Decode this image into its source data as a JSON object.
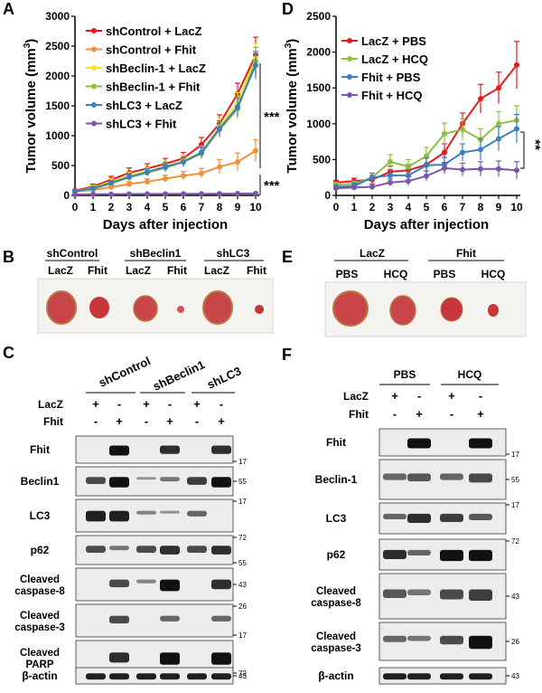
{
  "panels": {
    "A": "A",
    "B": "B",
    "C": "C",
    "D": "D",
    "E": "E",
    "F": "F"
  },
  "chart_data": [
    {
      "id": "A",
      "type": "line",
      "title": "",
      "xlabel": "Days after injection",
      "ylabel": "Tumor volume (mm3)",
      "ylabel_main": "Tumor volume (mm",
      "ylabel_sup": "3",
      "ylabel_close": ")",
      "xlim": [
        0,
        10
      ],
      "ylim": [
        0,
        3000
      ],
      "xticks": [
        0,
        1,
        2,
        3,
        4,
        5,
        6,
        7,
        8,
        9,
        10
      ],
      "yticks": [
        0,
        500,
        1000,
        1500,
        2000,
        2500,
        3000
      ],
      "legend_position": "top-left",
      "significance": [
        "***",
        "***"
      ],
      "series": [
        {
          "name": "shControl + LacZ",
          "color": "#e41a1c",
          "values": [
            80,
            150,
            260,
            380,
            450,
            530,
            620,
            850,
            1200,
            1700,
            2350
          ],
          "err": [
            20,
            40,
            60,
            80,
            80,
            90,
            100,
            120,
            150,
            180,
            300
          ]
        },
        {
          "name": "shControl + Fhit",
          "color": "#f28e3c",
          "values": [
            60,
            90,
            140,
            190,
            230,
            280,
            330,
            370,
            480,
            560,
            750
          ],
          "err": [
            15,
            20,
            30,
            40,
            50,
            60,
            70,
            80,
            120,
            150,
            180
          ]
        },
        {
          "name": "shBeclin-1 + LacZ",
          "color": "#f5e61e",
          "values": [
            70,
            130,
            230,
            330,
            400,
            480,
            580,
            720,
            1150,
            1550,
            2300
          ],
          "err": [
            20,
            40,
            50,
            60,
            70,
            80,
            90,
            100,
            140,
            170,
            250
          ]
        },
        {
          "name": "shBeclin-1 + Fhit",
          "color": "#8fbf40",
          "values": [
            60,
            110,
            200,
            300,
            380,
            460,
            560,
            700,
            1100,
            1450,
            2250
          ],
          "err": [
            15,
            30,
            40,
            50,
            60,
            70,
            80,
            90,
            130,
            160,
            230
          ]
        },
        {
          "name": "shLC3 + LacZ",
          "color": "#3a7fc2",
          "values": [
            70,
            120,
            210,
            310,
            390,
            480,
            560,
            720,
            1120,
            1480,
            2180
          ],
          "err": [
            15,
            30,
            40,
            50,
            60,
            70,
            80,
            90,
            130,
            160,
            230
          ]
        },
        {
          "name": "shLC3 + Fhit",
          "color": "#7b56a8",
          "values": [
            15,
            18,
            20,
            22,
            24,
            25,
            26,
            27,
            28,
            30,
            32
          ],
          "err": [
            3,
            3,
            3,
            3,
            3,
            3,
            3,
            3,
            4,
            4,
            5
          ]
        }
      ]
    },
    {
      "id": "D",
      "type": "line",
      "title": "",
      "xlabel": "Days after injection",
      "ylabel": "Tumor volume (mm3)",
      "ylabel_main": "Tumor volume (mm",
      "ylabel_sup": "3",
      "ylabel_close": ")",
      "xlim": [
        0,
        10
      ],
      "ylim": [
        0,
        2500
      ],
      "xticks": [
        0,
        1,
        2,
        3,
        4,
        5,
        6,
        7,
        8,
        9,
        10
      ],
      "yticks": [
        0,
        500,
        1000,
        1500,
        2000,
        2500
      ],
      "legend_position": "top-left",
      "significance": [
        "**"
      ],
      "series": [
        {
          "name": "LacZ + PBS",
          "color": "#e41a1c",
          "values": [
            180,
            200,
            220,
            330,
            350,
            430,
            600,
            1000,
            1350,
            1500,
            1820
          ],
          "err": [
            30,
            40,
            60,
            80,
            80,
            100,
            120,
            150,
            200,
            220,
            330
          ]
        },
        {
          "name": "LacZ + HCQ",
          "color": "#8fbf40",
          "values": [
            150,
            160,
            250,
            470,
            400,
            550,
            860,
            920,
            780,
            1000,
            1050
          ],
          "err": [
            30,
            40,
            60,
            100,
            100,
            120,
            150,
            150,
            150,
            170,
            200
          ]
        },
        {
          "name": "Fhit + PBS",
          "color": "#3a7fc2",
          "values": [
            120,
            130,
            250,
            280,
            280,
            420,
            430,
            600,
            640,
            790,
            930
          ],
          "err": [
            20,
            40,
            60,
            80,
            80,
            100,
            100,
            120,
            150,
            170,
            200
          ]
        },
        {
          "name": "Fhit + HCQ",
          "color": "#7b56a8",
          "values": [
            100,
            110,
            120,
            180,
            200,
            270,
            380,
            360,
            370,
            370,
            350
          ],
          "err": [
            20,
            30,
            40,
            50,
            60,
            70,
            80,
            90,
            100,
            110,
            120
          ]
        }
      ]
    }
  ],
  "panelB": {
    "groups": [
      "shControl",
      "shBeclin1",
      "shLC3"
    ],
    "lanes": [
      "LacZ",
      "Fhit",
      "LacZ",
      "Fhit",
      "LacZ",
      "Fhit"
    ]
  },
  "panelE": {
    "groups": [
      "LacZ",
      "Fhit"
    ],
    "lanes": [
      "PBS",
      "HCQ",
      "PBS",
      "HCQ"
    ]
  },
  "panelC": {
    "groups": [
      "shControl",
      "shBeclin1",
      "shLC3"
    ],
    "row_labels": [
      "LacZ",
      "Fhit"
    ],
    "lacz_signs": [
      "+",
      "-",
      "+",
      "-",
      "+",
      "-"
    ],
    "fhit_signs": [
      "-",
      "+",
      "-",
      "+",
      "-",
      "+"
    ],
    "blots": [
      {
        "label": "Fhit",
        "markers": [
          "17"
        ]
      },
      {
        "label": "Beclin1",
        "markers": [
          "55"
        ]
      },
      {
        "label": "LC3",
        "markers": [
          "17"
        ]
      },
      {
        "label": "p62",
        "markers": [
          "72",
          "55"
        ]
      },
      {
        "label": "Cleaved caspase-8",
        "line1": "Cleaved",
        "line2": "caspase-8",
        "markers": [
          "43"
        ]
      },
      {
        "label": "Cleaved caspase-3",
        "line1": "Cleaved",
        "line2": "caspase-3",
        "markers": [
          "26",
          "17"
        ]
      },
      {
        "label": "Cleaved PARP",
        "line1": "Cleaved",
        "line2": "PARP",
        "markers": [
          "72"
        ]
      },
      {
        "label": "β-actin",
        "markers": [
          "43"
        ]
      }
    ]
  },
  "panelF": {
    "groups": [
      "PBS",
      "HCQ"
    ],
    "row_labels": [
      "LacZ",
      "Fhit"
    ],
    "lacz_signs": [
      "+",
      "-",
      "+",
      "-"
    ],
    "fhit_signs": [
      "-",
      "+",
      "-",
      "+"
    ],
    "blots": [
      {
        "label": "Fhit",
        "markers": [
          "17"
        ]
      },
      {
        "label": "Beclin-1",
        "markers": [
          "55"
        ]
      },
      {
        "label": "LC3",
        "markers": [
          "17"
        ]
      },
      {
        "label": "p62",
        "markers": [
          "72"
        ]
      },
      {
        "label": "Cleaved caspase-8",
        "line1": "Cleaved",
        "line2": "caspase-8",
        "markers": [
          "43"
        ]
      },
      {
        "label": "Cleaved caspase-3",
        "line1": "Cleaved",
        "line2": "caspase-3",
        "markers": [
          "26"
        ]
      },
      {
        "label": "β-actin",
        "markers": [
          "43"
        ]
      }
    ]
  },
  "colors": {
    "blot_bg": "#ececec",
    "band": "#111111",
    "plate_bg": "#f4f3ef",
    "tumor": "#c8464a"
  }
}
